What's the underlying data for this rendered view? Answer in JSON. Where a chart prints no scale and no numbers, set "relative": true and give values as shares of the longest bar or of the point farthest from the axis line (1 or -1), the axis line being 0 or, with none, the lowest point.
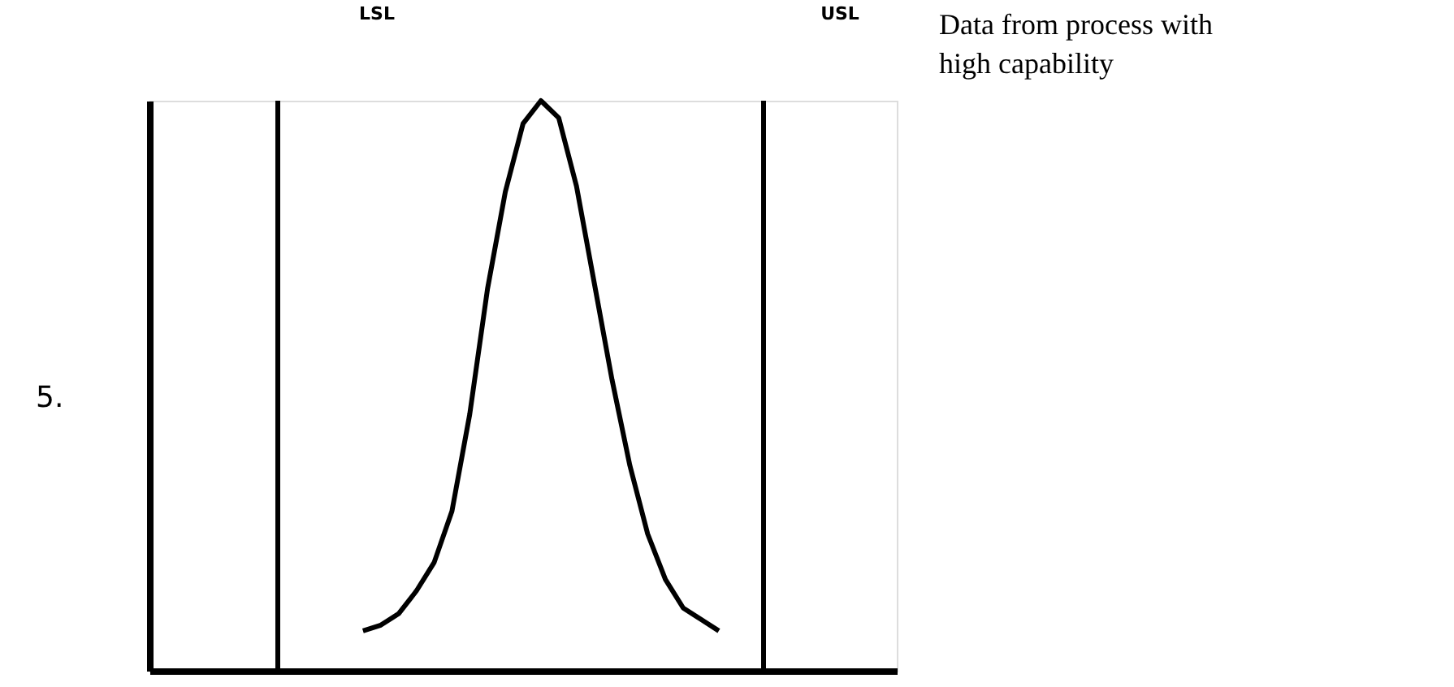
{
  "chart_data": {
    "type": "line",
    "relative": true,
    "categories": [
      null,
      null,
      null,
      null,
      null,
      null,
      null,
      null,
      null,
      null,
      null,
      null,
      null,
      null,
      null,
      null,
      null,
      null,
      null,
      null,
      null,
      null,
      null,
      null,
      null,
      null,
      null,
      null,
      null,
      null,
      null,
      null,
      null,
      null,
      null,
      null,
      null,
      null,
      null,
      null,
      null,
      null,
      null
    ],
    "series": [
      {
        "color": "#000000",
        "values": [
          null,
          null,
          null,
          null,
          null,
          null,
          null,
          null,
          null,
          null,
          null,
          null,
          0.07,
          0.08,
          0.1,
          0.14,
          0.19,
          0.28,
          0.45,
          0.67,
          0.84,
          0.96,
          1.0,
          0.97,
          0.85,
          0.68,
          0.51,
          0.36,
          0.24,
          0.16,
          0.11,
          0.09,
          0.07,
          null,
          null,
          null,
          null,
          null,
          null,
          null,
          null,
          null,
          null
        ]
      }
    ],
    "marker": "none",
    "line_style": "solid",
    "annotations": [
      "LSL",
      "USL",
      "5.",
      "Data from process with high capability"
    ]
  }
}
